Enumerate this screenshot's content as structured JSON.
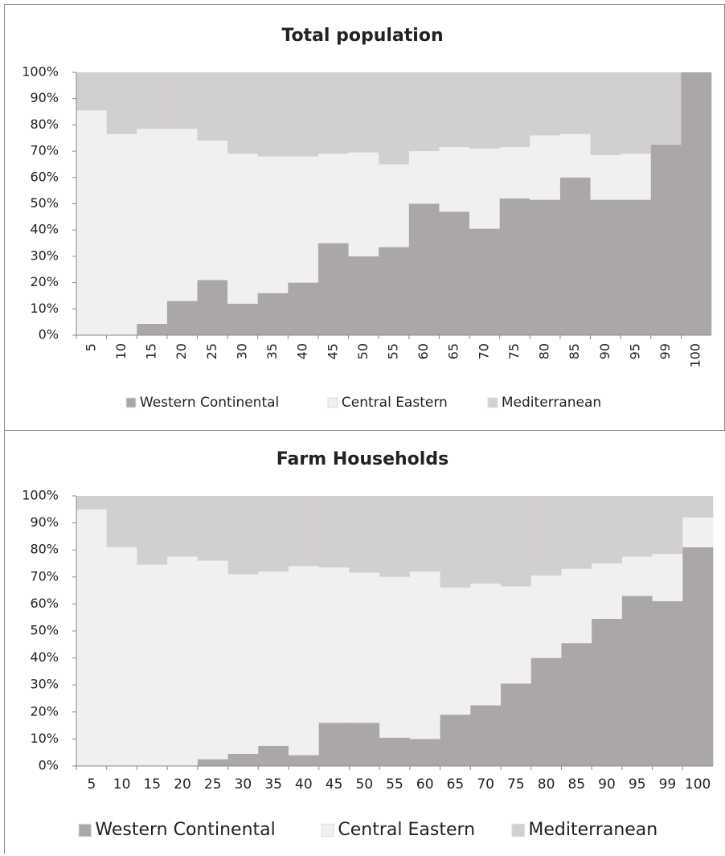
{
  "chart_data": [
    {
      "type": "bar",
      "stacked": true,
      "title": "Total population",
      "categories": [
        "5",
        "10",
        "15",
        "20",
        "25",
        "30",
        "35",
        "40",
        "45",
        "50",
        "55",
        "60",
        "65",
        "70",
        "75",
        "80",
        "85",
        "90",
        "95",
        "99",
        "100"
      ],
      "series": [
        {
          "name": "Western Continental",
          "color": "#aba7a7",
          "values": [
            0,
            0,
            4.3,
            13,
            21,
            12,
            16,
            20,
            35,
            30,
            33.5,
            50,
            47,
            40.5,
            52,
            51.5,
            60,
            51.5,
            51.5,
            72.5,
            100
          ]
        },
        {
          "name": "Central Eastern",
          "color": "#f0f0f0",
          "values": [
            85.5,
            76.5,
            74.2,
            65.5,
            53,
            57,
            52,
            48,
            34,
            39.5,
            31.5,
            20,
            24.5,
            30.5,
            19.5,
            24.5,
            16.5,
            17,
            17.5,
            0,
            0
          ]
        },
        {
          "name": "Mediterranean",
          "color": "#d2cfcf",
          "values": [
            14.5,
            23.5,
            21.5,
            21.5,
            26,
            31,
            32,
            32,
            31,
            30.5,
            35,
            30,
            28.5,
            29,
            28.5,
            24,
            23.5,
            31.5,
            31,
            27.5,
            0
          ]
        }
      ],
      "ylim": [
        0,
        100
      ],
      "yticks": [
        {
          "value": 0,
          "label": "0%"
        },
        {
          "value": 10,
          "label": "10%"
        },
        {
          "value": 20,
          "label": "20%"
        },
        {
          "value": 30,
          "label": "30%"
        },
        {
          "value": 40,
          "label": "40%"
        },
        {
          "value": 50,
          "label": "50%"
        },
        {
          "value": 60,
          "label": "60%"
        },
        {
          "value": 70,
          "label": "70%"
        },
        {
          "value": 80,
          "label": "80%"
        },
        {
          "value": 90,
          "label": "90%"
        },
        {
          "value": 100,
          "label": "100%"
        }
      ],
      "legend": "bottom"
    },
    {
      "type": "bar",
      "stacked": true,
      "title": "Farm Households",
      "categories": [
        "5",
        "10",
        "15",
        "20",
        "25",
        "30",
        "35",
        "40",
        "45",
        "50",
        "55",
        "60",
        "65",
        "70",
        "75",
        "80",
        "85",
        "90",
        "95",
        "99",
        "100"
      ],
      "series": [
        {
          "name": "Western Continental",
          "color": "#aba7a7",
          "values": [
            0,
            0,
            0,
            0,
            2.5,
            4.5,
            7.5,
            4,
            16,
            16,
            10.5,
            10,
            19,
            22.5,
            30.5,
            40,
            45.5,
            54.5,
            63,
            61,
            81
          ]
        },
        {
          "name": "Central Eastern",
          "color": "#f0f0f0",
          "values": [
            95,
            81,
            74.5,
            77.5,
            73.5,
            66.5,
            64.5,
            70,
            57.5,
            55.5,
            59.5,
            62,
            47,
            45,
            36,
            30.5,
            27.5,
            20.5,
            14.5,
            17.5,
            11
          ]
        },
        {
          "name": "Mediterranean",
          "color": "#d2cfcf",
          "values": [
            5,
            19,
            25.5,
            22.5,
            24,
            29,
            28,
            26,
            26.5,
            28.5,
            30,
            28,
            34,
            32.5,
            33.5,
            29.5,
            27,
            25,
            22.5,
            21.5,
            8
          ]
        }
      ],
      "ylim": [
        0,
        100
      ],
      "yticks": [
        {
          "value": 0,
          "label": "0%"
        },
        {
          "value": 10,
          "label": "10%"
        },
        {
          "value": 20,
          "label": "20%"
        },
        {
          "value": 30,
          "label": "30%"
        },
        {
          "value": 40,
          "label": "40%"
        },
        {
          "value": 50,
          "label": "50%"
        },
        {
          "value": 60,
          "label": "60%"
        },
        {
          "value": 70,
          "label": "70%"
        },
        {
          "value": 80,
          "label": "80%"
        },
        {
          "value": 90,
          "label": "90%"
        },
        {
          "value": 100,
          "label": "100%"
        }
      ],
      "legend": "bottom"
    }
  ]
}
